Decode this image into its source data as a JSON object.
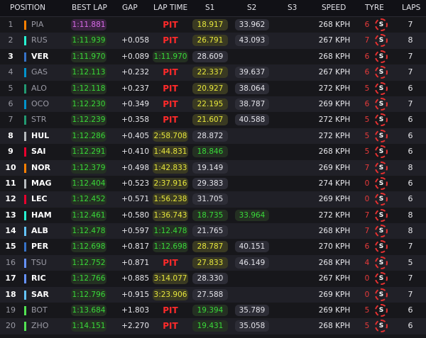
{
  "header": {
    "position": "POSITION",
    "best_lap": "BEST LAP",
    "gap": "GAP",
    "lap_time": "LAP TIME",
    "s1": "S1",
    "s2": "S2",
    "s3": "S3",
    "speed": "SPEED",
    "tyre": "TYRE",
    "laps": "LAPS"
  },
  "colors": {
    "pit": "#ff2a2a",
    "purple": "#d86be8",
    "green": "#39d939",
    "yellow": "#e6e63c",
    "tyre_soft": "#e43030"
  },
  "rows": [
    {
      "pos": "1",
      "driver": "PIA",
      "team_color": "#ff8000",
      "best": "1:11.881",
      "best_style": "purple",
      "gap": "",
      "lap": "PIT",
      "lap_style": "pit",
      "s1": "18.917",
      "s1_style": "yellow",
      "s2": "33.962",
      "s2_style": "plain",
      "speed": "268 KPH",
      "tyre_laps": "6",
      "tyre": "S",
      "laps": "7",
      "dim": true
    },
    {
      "pos": "2",
      "driver": "RUS",
      "team_color": "#27f4d2",
      "best": "1:11.939",
      "best_style": "green",
      "gap": "+0.058",
      "lap": "PIT",
      "lap_style": "pit",
      "s1": "26.791",
      "s1_style": "yellow",
      "s2": "43.093",
      "s2_style": "plain",
      "speed": "267 KPH",
      "tyre_laps": "7",
      "tyre": "S",
      "laps": "8",
      "dim": true
    },
    {
      "pos": "3",
      "driver": "VER",
      "team_color": "#3671c6",
      "best": "1:11.970",
      "best_style": "green",
      "gap": "+0.089",
      "lap": "1:11.970",
      "lap_style": "green",
      "s1": "28.609",
      "s1_style": "plain",
      "s2": "",
      "s2_style": "none",
      "speed": "268 KPH",
      "tyre_laps": "6",
      "tyre": "S",
      "laps": "7",
      "dim": false
    },
    {
      "pos": "4",
      "driver": "GAS",
      "team_color": "#0093cc",
      "best": "1:12.113",
      "best_style": "green",
      "gap": "+0.232",
      "lap": "PIT",
      "lap_style": "pit",
      "s1": "22.337",
      "s1_style": "yellow",
      "s2": "39.637",
      "s2_style": "plain",
      "speed": "267 KPH",
      "tyre_laps": "6",
      "tyre": "S",
      "laps": "7",
      "dim": true
    },
    {
      "pos": "5",
      "driver": "ALO",
      "team_color": "#229971",
      "best": "1:12.118",
      "best_style": "green",
      "gap": "+0.237",
      "lap": "PIT",
      "lap_style": "pit",
      "s1": "20.927",
      "s1_style": "yellow",
      "s2": "38.064",
      "s2_style": "plain",
      "speed": "272 KPH",
      "tyre_laps": "5",
      "tyre": "S",
      "laps": "6",
      "dim": true
    },
    {
      "pos": "6",
      "driver": "OCO",
      "team_color": "#0093cc",
      "best": "1:12.230",
      "best_style": "green",
      "gap": "+0.349",
      "lap": "PIT",
      "lap_style": "pit",
      "s1": "22.195",
      "s1_style": "yellow",
      "s2": "38.787",
      "s2_style": "plain",
      "speed": "269 KPH",
      "tyre_laps": "6",
      "tyre": "S",
      "laps": "7",
      "dim": true
    },
    {
      "pos": "7",
      "driver": "STR",
      "team_color": "#229971",
      "best": "1:12.239",
      "best_style": "green",
      "gap": "+0.358",
      "lap": "PIT",
      "lap_style": "pit",
      "s1": "21.607",
      "s1_style": "yellow",
      "s2": "40.588",
      "s2_style": "plain",
      "speed": "272 KPH",
      "tyre_laps": "5",
      "tyre": "S",
      "laps": "6",
      "dim": true
    },
    {
      "pos": "8",
      "driver": "HUL",
      "team_color": "#b6babd",
      "best": "1:12.286",
      "best_style": "green",
      "gap": "+0.405",
      "lap": "2:58.708",
      "lap_style": "yellow",
      "s1": "28.872",
      "s1_style": "plain",
      "s2": "",
      "s2_style": "none",
      "speed": "272 KPH",
      "tyre_laps": "5",
      "tyre": "S",
      "laps": "6",
      "dim": false
    },
    {
      "pos": "9",
      "driver": "SAI",
      "team_color": "#e8002d",
      "best": "1:12.291",
      "best_style": "green",
      "gap": "+0.410",
      "lap": "1:44.831",
      "lap_style": "yellow",
      "s1": "18.846",
      "s1_style": "green",
      "s2": "",
      "s2_style": "none",
      "speed": "268 KPH",
      "tyre_laps": "5",
      "tyre": "S",
      "laps": "6",
      "dim": false
    },
    {
      "pos": "10",
      "driver": "NOR",
      "team_color": "#ff8000",
      "best": "1:12.379",
      "best_style": "green",
      "gap": "+0.498",
      "lap": "1:42.833",
      "lap_style": "yellow",
      "s1": "19.149",
      "s1_style": "plain",
      "s2": "",
      "s2_style": "none",
      "speed": "269 KPH",
      "tyre_laps": "7",
      "tyre": "S",
      "laps": "8",
      "dim": false
    },
    {
      "pos": "11",
      "driver": "MAG",
      "team_color": "#b6babd",
      "best": "1:12.404",
      "best_style": "green",
      "gap": "+0.523",
      "lap": "2:37.916",
      "lap_style": "yellow",
      "s1": "29.383",
      "s1_style": "plain",
      "s2": "",
      "s2_style": "none",
      "speed": "274 KPH",
      "tyre_laps": "0",
      "tyre": "S",
      "laps": "6",
      "dim": false
    },
    {
      "pos": "12",
      "driver": "LEC",
      "team_color": "#e8002d",
      "best": "1:12.452",
      "best_style": "green",
      "gap": "+0.571",
      "lap": "1:56.238",
      "lap_style": "yellow",
      "s1": "31.705",
      "s1_style": "plain",
      "s2": "",
      "s2_style": "none",
      "speed": "269 KPH",
      "tyre_laps": "0",
      "tyre": "S",
      "laps": "6",
      "dim": false
    },
    {
      "pos": "13",
      "driver": "HAM",
      "team_color": "#27f4d2",
      "best": "1:12.461",
      "best_style": "green",
      "gap": "+0.580",
      "lap": "1:36.743",
      "lap_style": "yellow",
      "s1": "18.735",
      "s1_style": "green",
      "s2": "33.964",
      "s2_style": "green",
      "speed": "272 KPH",
      "tyre_laps": "7",
      "tyre": "S",
      "laps": "8",
      "dim": false
    },
    {
      "pos": "14",
      "driver": "ALB",
      "team_color": "#64c4ff",
      "best": "1:12.478",
      "best_style": "green",
      "gap": "+0.597",
      "lap": "1:12.478",
      "lap_style": "green",
      "s1": "21.765",
      "s1_style": "plain",
      "s2": "",
      "s2_style": "none",
      "speed": "268 KPH",
      "tyre_laps": "7",
      "tyre": "S",
      "laps": "8",
      "dim": false
    },
    {
      "pos": "15",
      "driver": "PER",
      "team_color": "#3671c6",
      "best": "1:12.698",
      "best_style": "green",
      "gap": "+0.817",
      "lap": "1:12.698",
      "lap_style": "green",
      "s1": "28.787",
      "s1_style": "yellow",
      "s2": "40.151",
      "s2_style": "plain",
      "speed": "270 KPH",
      "tyre_laps": "6",
      "tyre": "S",
      "laps": "7",
      "dim": false
    },
    {
      "pos": "16",
      "driver": "TSU",
      "team_color": "#6692ff",
      "best": "1:12.752",
      "best_style": "green",
      "gap": "+0.871",
      "lap": "PIT",
      "lap_style": "pit",
      "s1": "27.833",
      "s1_style": "yellow",
      "s2": "46.149",
      "s2_style": "plain",
      "speed": "268 KPH",
      "tyre_laps": "4",
      "tyre": "S",
      "laps": "5",
      "dim": true
    },
    {
      "pos": "17",
      "driver": "RIC",
      "team_color": "#6692ff",
      "best": "1:12.766",
      "best_style": "green",
      "gap": "+0.885",
      "lap": "3:14.077",
      "lap_style": "yellow",
      "s1": "28.330",
      "s1_style": "plain",
      "s2": "",
      "s2_style": "none",
      "speed": "267 KPH",
      "tyre_laps": "0",
      "tyre": "S",
      "laps": "7",
      "dim": false
    },
    {
      "pos": "18",
      "driver": "SAR",
      "team_color": "#64c4ff",
      "best": "1:12.796",
      "best_style": "green",
      "gap": "+0.915",
      "lap": "3:23.906",
      "lap_style": "yellow",
      "s1": "27.588",
      "s1_style": "plain",
      "s2": "",
      "s2_style": "none",
      "speed": "269 KPH",
      "tyre_laps": "0",
      "tyre": "S",
      "laps": "7",
      "dim": false
    },
    {
      "pos": "19",
      "driver": "BOT",
      "team_color": "#52e252",
      "best": "1:13.684",
      "best_style": "green",
      "gap": "+1.803",
      "lap": "PIT",
      "lap_style": "pit",
      "s1": "19.394",
      "s1_style": "green",
      "s2": "35.789",
      "s2_style": "plain",
      "speed": "269 KPH",
      "tyre_laps": "5",
      "tyre": "S",
      "laps": "6",
      "dim": true
    },
    {
      "pos": "20",
      "driver": "ZHO",
      "team_color": "#52e252",
      "best": "1:14.151",
      "best_style": "green",
      "gap": "+2.270",
      "lap": "PIT",
      "lap_style": "pit",
      "s1": "19.431",
      "s1_style": "green",
      "s2": "35.058",
      "s2_style": "plain",
      "speed": "268 KPH",
      "tyre_laps": "5",
      "tyre": "S",
      "laps": "6",
      "dim": true
    }
  ]
}
